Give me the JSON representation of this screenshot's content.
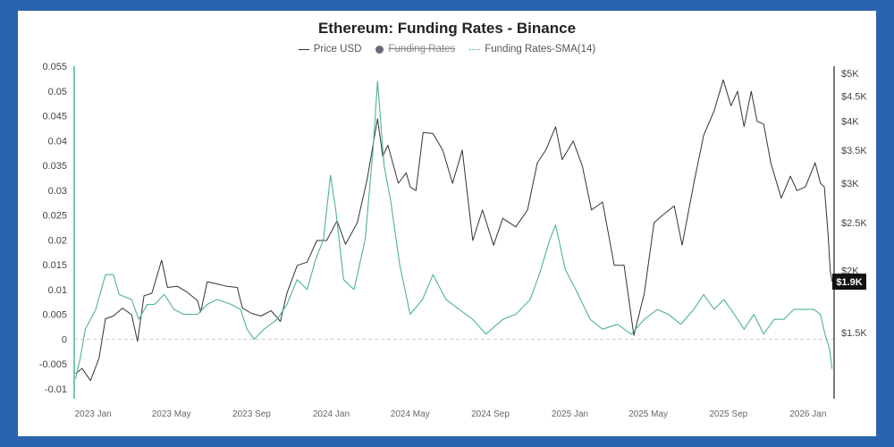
{
  "colors": {
    "frame": "#2a63ad",
    "price": "#333333",
    "funding": "#4fb58a",
    "zero_line": "#cccccc",
    "badge_bg": "#111111",
    "badge_fg": "#ffffff"
  },
  "legend": {
    "price_label": "Price USD",
    "funding_label": "Funding Rates",
    "sma_label": "Funding Rates-SMA(14)"
  },
  "chart_data": {
    "type": "line",
    "title": "Ethereum: Funding Rates - Binance",
    "x_ticks": [
      "2023 Jan",
      "2023 May",
      "2023 Sep",
      "2024 Jan",
      "2024 May",
      "2024 Sep",
      "2025 Jan",
      "2025 May",
      "2025 Sep",
      "2026 Jan"
    ],
    "x_tick_dates": [
      "2023-01-01",
      "2023-05-01",
      "2023-09-01",
      "2024-01-01",
      "2024-05-01",
      "2024-09-01",
      "2025-01-01",
      "2025-05-01",
      "2025-09-01",
      "2026-01-01"
    ],
    "left_axis": {
      "ylim": [
        -0.012,
        0.055
      ],
      "ticks": [
        0.055,
        0.05,
        0.045,
        0.04,
        0.035,
        0.03,
        0.025,
        0.02,
        0.015,
        0.01,
        0.005,
        0,
        -0.005,
        -0.01
      ],
      "tick_labels": [
        "0.055",
        "0.05",
        "0.045",
        "0.04",
        "0.035",
        "0.03",
        "0.025",
        "0.02",
        "0.015",
        "0.01",
        "0.005",
        "0",
        "-0.005",
        "-0.01"
      ]
    },
    "right_axis": {
      "ticks": [
        5000,
        4500,
        4000,
        3500,
        3000,
        2500,
        2000,
        1500
      ],
      "tick_labels": [
        "$5K",
        "$4.5K",
        "$4K",
        "$3.5K",
        "$3K",
        "$2.5K",
        "$2K",
        "$1.5K"
      ]
    },
    "current_price_label": "$1.9K",
    "current_price": 1900,
    "series": [
      {
        "name": "Price USD",
        "axis": "right",
        "points": [
          [
            "2022-12-05",
            1240
          ],
          [
            "2022-12-15",
            1270
          ],
          [
            "2022-12-28",
            1200
          ],
          [
            "2023-01-10",
            1330
          ],
          [
            "2023-01-20",
            1600
          ],
          [
            "2023-02-01",
            1620
          ],
          [
            "2023-02-15",
            1680
          ],
          [
            "2023-03-01",
            1630
          ],
          [
            "2023-03-10",
            1440
          ],
          [
            "2023-03-20",
            1780
          ],
          [
            "2023-04-01",
            1800
          ],
          [
            "2023-04-16",
            2100
          ],
          [
            "2023-04-25",
            1850
          ],
          [
            "2023-05-10",
            1860
          ],
          [
            "2023-05-25",
            1810
          ],
          [
            "2023-06-10",
            1740
          ],
          [
            "2023-06-15",
            1650
          ],
          [
            "2023-06-25",
            1900
          ],
          [
            "2023-07-10",
            1880
          ],
          [
            "2023-07-25",
            1860
          ],
          [
            "2023-08-10",
            1850
          ],
          [
            "2023-08-18",
            1680
          ],
          [
            "2023-09-01",
            1640
          ],
          [
            "2023-09-15",
            1620
          ],
          [
            "2023-10-01",
            1660
          ],
          [
            "2023-10-15",
            1580
          ],
          [
            "2023-10-25",
            1800
          ],
          [
            "2023-11-10",
            2050
          ],
          [
            "2023-11-25",
            2080
          ],
          [
            "2023-12-10",
            2300
          ],
          [
            "2023-12-25",
            2300
          ],
          [
            "2024-01-10",
            2520
          ],
          [
            "2024-01-23",
            2260
          ],
          [
            "2024-02-10",
            2500
          ],
          [
            "2024-02-25",
            3050
          ],
          [
            "2024-03-12",
            4050
          ],
          [
            "2024-03-20",
            3400
          ],
          [
            "2024-03-28",
            3580
          ],
          [
            "2024-04-13",
            3000
          ],
          [
            "2024-04-25",
            3150
          ],
          [
            "2024-05-01",
            2950
          ],
          [
            "2024-05-10",
            2900
          ],
          [
            "2024-05-21",
            3800
          ],
          [
            "2024-06-05",
            3780
          ],
          [
            "2024-06-20",
            3500
          ],
          [
            "2024-07-05",
            3000
          ],
          [
            "2024-07-20",
            3500
          ],
          [
            "2024-08-05",
            2300
          ],
          [
            "2024-08-20",
            2650
          ],
          [
            "2024-09-06",
            2250
          ],
          [
            "2024-09-20",
            2550
          ],
          [
            "2024-10-10",
            2450
          ],
          [
            "2024-10-28",
            2650
          ],
          [
            "2024-11-12",
            3300
          ],
          [
            "2024-11-25",
            3500
          ],
          [
            "2024-12-10",
            3900
          ],
          [
            "2024-12-20",
            3350
          ],
          [
            "2025-01-06",
            3650
          ],
          [
            "2025-01-20",
            3250
          ],
          [
            "2025-02-03",
            2650
          ],
          [
            "2025-02-20",
            2750
          ],
          [
            "2025-03-10",
            2050
          ],
          [
            "2025-03-25",
            2050
          ],
          [
            "2025-04-09",
            1480
          ],
          [
            "2025-04-25",
            1800
          ],
          [
            "2025-05-10",
            2500
          ],
          [
            "2025-05-25",
            2600
          ],
          [
            "2025-06-10",
            2700
          ],
          [
            "2025-06-22",
            2250
          ],
          [
            "2025-07-10",
            3000
          ],
          [
            "2025-07-25",
            3750
          ],
          [
            "2025-08-10",
            4200
          ],
          [
            "2025-08-24",
            4850
          ],
          [
            "2025-09-05",
            4300
          ],
          [
            "2025-09-15",
            4600
          ],
          [
            "2025-09-25",
            3900
          ],
          [
            "2025-10-06",
            4600
          ],
          [
            "2025-10-15",
            4000
          ],
          [
            "2025-10-25",
            3950
          ],
          [
            "2025-11-05",
            3300
          ],
          [
            "2025-11-21",
            2800
          ],
          [
            "2025-12-05",
            3100
          ],
          [
            "2025-12-15",
            2900
          ],
          [
            "2025-12-28",
            2950
          ],
          [
            "2026-01-12",
            3300
          ],
          [
            "2026-01-20",
            3000
          ],
          [
            "2026-01-26",
            2950
          ],
          [
            "2026-02-01",
            2350
          ],
          [
            "2026-02-04",
            2000
          ],
          [
            "2026-02-07",
            1900
          ]
        ]
      },
      {
        "name": "Funding Rates-SMA(14)",
        "axis": "left",
        "points": [
          [
            "2022-12-05",
            -0.008
          ],
          [
            "2022-12-12",
            -0.004
          ],
          [
            "2022-12-20",
            0.002
          ],
          [
            "2023-01-05",
            0.006
          ],
          [
            "2023-01-20",
            0.013
          ],
          [
            "2023-02-01",
            0.013
          ],
          [
            "2023-02-10",
            0.009
          ],
          [
            "2023-03-01",
            0.008
          ],
          [
            "2023-03-12",
            0.004
          ],
          [
            "2023-03-25",
            0.007
          ],
          [
            "2023-04-05",
            0.007
          ],
          [
            "2023-04-20",
            0.009
          ],
          [
            "2023-05-05",
            0.006
          ],
          [
            "2023-05-20",
            0.005
          ],
          [
            "2023-06-10",
            0.005
          ],
          [
            "2023-06-25",
            0.007
          ],
          [
            "2023-07-10",
            0.008
          ],
          [
            "2023-08-01",
            0.007
          ],
          [
            "2023-08-15",
            0.006
          ],
          [
            "2023-08-25",
            0.002
          ],
          [
            "2023-09-05",
            0.0
          ],
          [
            "2023-09-20",
            0.002
          ],
          [
            "2023-10-10",
            0.004
          ],
          [
            "2023-10-25",
            0.007
          ],
          [
            "2023-11-10",
            0.012
          ],
          [
            "2023-11-25",
            0.01
          ],
          [
            "2023-12-08",
            0.016
          ],
          [
            "2023-12-20",
            0.02
          ],
          [
            "2023-12-31",
            0.033
          ],
          [
            "2024-01-08",
            0.026
          ],
          [
            "2024-01-20",
            0.012
          ],
          [
            "2024-02-05",
            0.01
          ],
          [
            "2024-02-22",
            0.02
          ],
          [
            "2024-03-05",
            0.038
          ],
          [
            "2024-03-12",
            0.052
          ],
          [
            "2024-03-22",
            0.035
          ],
          [
            "2024-04-01",
            0.028
          ],
          [
            "2024-04-15",
            0.015
          ],
          [
            "2024-05-01",
            0.005
          ],
          [
            "2024-05-20",
            0.008
          ],
          [
            "2024-06-05",
            0.013
          ],
          [
            "2024-06-25",
            0.008
          ],
          [
            "2024-07-15",
            0.006
          ],
          [
            "2024-08-05",
            0.004
          ],
          [
            "2024-08-25",
            0.001
          ],
          [
            "2024-09-20",
            0.004
          ],
          [
            "2024-10-10",
            0.005
          ],
          [
            "2024-11-01",
            0.008
          ],
          [
            "2024-11-15",
            0.013
          ],
          [
            "2024-12-01",
            0.02
          ],
          [
            "2024-12-10",
            0.023
          ],
          [
            "2024-12-25",
            0.014
          ],
          [
            "2025-01-10",
            0.01
          ],
          [
            "2025-02-01",
            0.004
          ],
          [
            "2025-02-20",
            0.002
          ],
          [
            "2025-03-15",
            0.003
          ],
          [
            "2025-04-05",
            0.001
          ],
          [
            "2025-04-25",
            0.004
          ],
          [
            "2025-05-15",
            0.006
          ],
          [
            "2025-06-01",
            0.005
          ],
          [
            "2025-06-20",
            0.003
          ],
          [
            "2025-07-10",
            0.006
          ],
          [
            "2025-07-25",
            0.009
          ],
          [
            "2025-08-10",
            0.006
          ],
          [
            "2025-08-25",
            0.008
          ],
          [
            "2025-09-10",
            0.005
          ],
          [
            "2025-09-25",
            0.002
          ],
          [
            "2025-10-10",
            0.005
          ],
          [
            "2025-10-25",
            0.001
          ],
          [
            "2025-11-10",
            0.004
          ],
          [
            "2025-11-25",
            0.004
          ],
          [
            "2025-12-10",
            0.006
          ],
          [
            "2025-12-25",
            0.006
          ],
          [
            "2026-01-10",
            0.006
          ],
          [
            "2026-01-20",
            0.005
          ],
          [
            "2026-01-27",
            0.001
          ],
          [
            "2026-02-03",
            -0.002
          ],
          [
            "2026-02-07",
            -0.006
          ]
        ]
      }
    ]
  }
}
